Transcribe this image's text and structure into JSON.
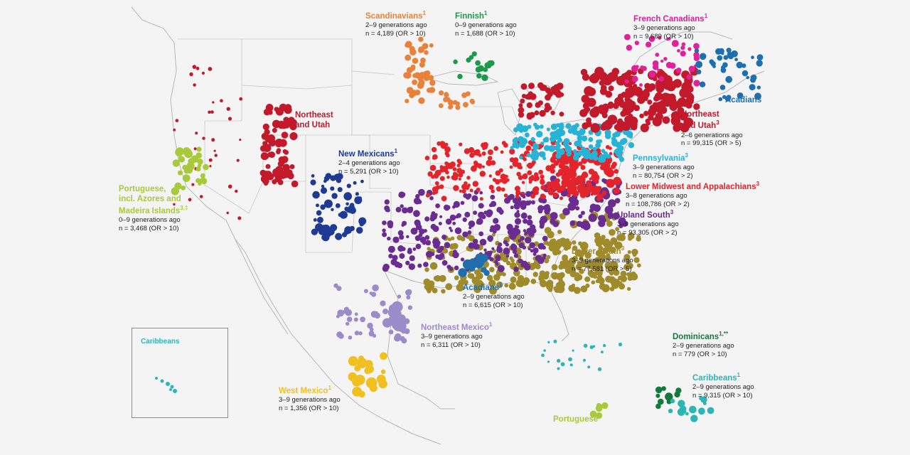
{
  "colors": {
    "scandinavians": "#e8823a",
    "finnish": "#1a9a4a",
    "french_canadians": "#e0219a",
    "acadians": "#1f6fae",
    "northeast_utah": "#c2192b",
    "pennsylvania": "#27b3d6",
    "lower_midwest": "#e3242b",
    "upland_south": "#6a2c91",
    "lower_south": "#a08b2a",
    "new_mexicans": "#1f3a93",
    "portuguese": "#a8c93a",
    "northeast_mexico": "#9a8cc8",
    "west_mexico": "#f0c020",
    "dominicans": "#127a3c",
    "caribbeans": "#2bb5b5",
    "background": "#f4f4f4",
    "borders": "#b8b8b8"
  },
  "clusters": [
    {
      "key": "scandinavians",
      "name": "Scandinavians",
      "sup": "1",
      "gen": "2–9 generations ago",
      "n": "n = 4,189 (OR > 10)"
    },
    {
      "key": "finnish",
      "name": "Finnish",
      "sup": "1",
      "gen": "0–9 generations ago",
      "n": "n = 1,688 (OR > 10)"
    },
    {
      "key": "french_canadians",
      "name": "French Canadians",
      "sup": "1",
      "gen": "3–9 generations ago",
      "n": "n = 9,689 (OR > 10)"
    },
    {
      "key": "acadians_ne",
      "name": "Acadians"
    },
    {
      "key": "northeast_utah",
      "name": "Northeast and Utah",
      "sup": "3",
      "gen": "2–6 generations ago",
      "n": "n = 99,315 (OR > 5)"
    },
    {
      "key": "northeast_utah_west",
      "name": "Northeast and Utah"
    },
    {
      "key": "pennsylvania",
      "name": "Pennsylvania",
      "sup": "3",
      "gen": "3–9 generations ago",
      "n": "n = 80,754 (OR > 2)"
    },
    {
      "key": "lower_midwest",
      "name": "Lower Midwest and Appalachians",
      "sup": "3",
      "gen": "3–8 generations ago",
      "n": "n = 108,786 (OR > 2)"
    },
    {
      "key": "upland_south",
      "name": "Upland South",
      "sup": "3",
      "gen": "3–9 generations ago",
      "n": "n = 93,305 (OR > 2)"
    },
    {
      "key": "lower_south",
      "name": "Lower South",
      "sup": "3",
      "gen": "3–9 generations ago",
      "n": "n = 77,581 (OR > 5)"
    },
    {
      "key": "new_mexicans",
      "name": "New Mexicans",
      "sup": "1",
      "gen": "2–4 generations ago",
      "n": "n = 5,291 (OR > 10)"
    },
    {
      "key": "portuguese",
      "name": "Portuguese, incl. Azores and Madeira Islands",
      "sup": "3,‡",
      "gen": "0–9 generations ago",
      "n": "n = 3,468 (OR > 10)"
    },
    {
      "key": "acadians_south",
      "name": "Acadians",
      "sup": "1",
      "gen": "2–9 generations ago",
      "n": "n = 6,615 (OR > 10)"
    },
    {
      "key": "northeast_mexico",
      "name": "Northeast Mexico",
      "sup": "1",
      "gen": "3–9 generations ago",
      "n": "n = 6,311 (OR > 10)"
    },
    {
      "key": "west_mexico",
      "name": "West Mexico",
      "sup": "1",
      "gen": "3–9 generations ago",
      "n": "n = 1,356 (OR > 10)"
    },
    {
      "key": "dominicans",
      "name": "Dominicans",
      "sup": "1,**",
      "gen": "2–9 generations ago",
      "n": "n = 779 (OR > 10)"
    },
    {
      "key": "caribbeans",
      "name": "Caribbeans",
      "sup": "1",
      "gen": "2–9 generations ago",
      "n": "n = 9,315 (OR > 10)"
    },
    {
      "key": "portuguese_carib",
      "name": "Portuguese"
    }
  ],
  "inset": {
    "title": "Caribbeans"
  }
}
